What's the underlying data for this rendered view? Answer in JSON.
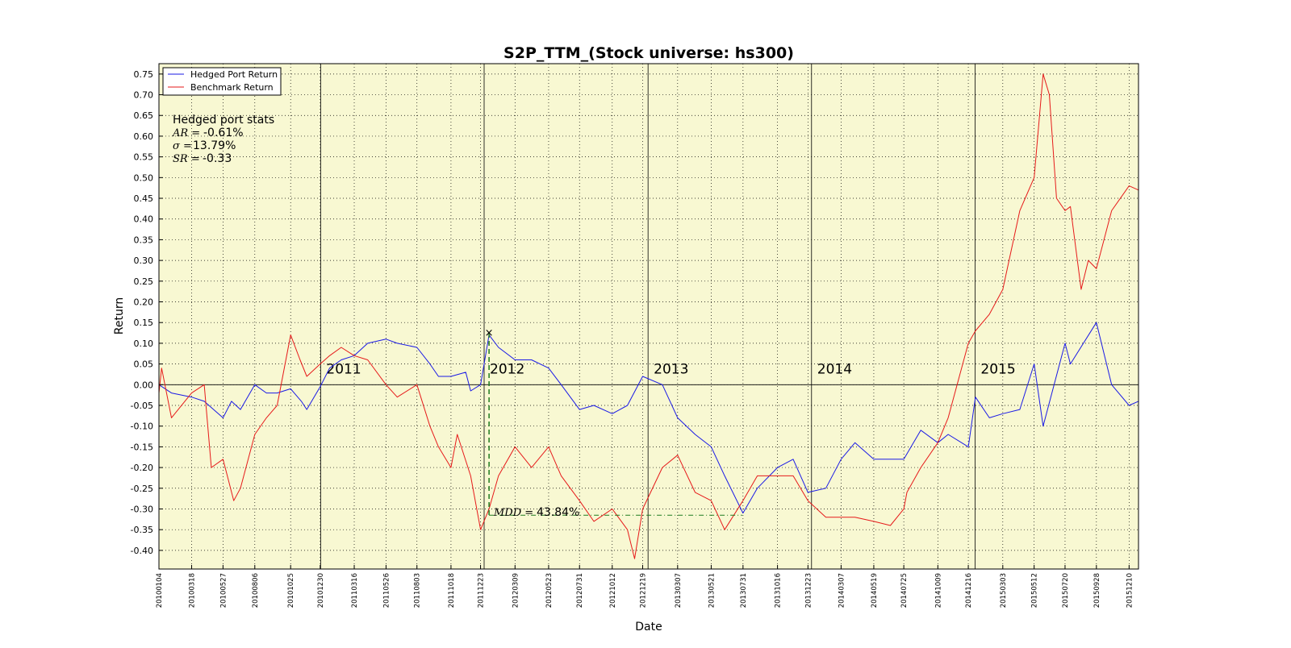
{
  "chart_data": {
    "type": "line",
    "title": "S2P_TTM_(Stock universe: hs300)",
    "xlabel": "Date",
    "ylabel": "Return",
    "ylim": [
      -0.445,
      0.775
    ],
    "grid": true,
    "plot_background": "#f8f8d2",
    "legend": {
      "position": "top-left",
      "entries": [
        "Hedged Port Return",
        "Benchmark Return"
      ]
    },
    "yticks": [
      "0.75",
      "0.70",
      "0.65",
      "0.60",
      "0.55",
      "0.50",
      "0.45",
      "0.40",
      "0.35",
      "0.30",
      "0.25",
      "0.20",
      "0.15",
      "0.10",
      "0.05",
      "0.00",
      "-0.05",
      "-0.10",
      "-0.15",
      "-0.20",
      "-0.25",
      "-0.30",
      "-0.35",
      "-0.40"
    ],
    "xticks": [
      "20100104",
      "20100318",
      "20100527",
      "20100806",
      "20101025",
      "20101230",
      "20110316",
      "20110526",
      "20110803",
      "20111018",
      "20111223",
      "20120309",
      "20120523",
      "20120731",
      "20121012",
      "20121219",
      "20130307",
      "20130521",
      "20130731",
      "20131016",
      "20131223",
      "20140307",
      "20140519",
      "20140725",
      "20141009",
      "20141216",
      "20150303",
      "20150512",
      "20150720",
      "20150928",
      "20151210"
    ],
    "x_range": [
      "20100104",
      "20151231"
    ],
    "year_labels": [
      "2011",
      "2012",
      "2013",
      "2014",
      "2015"
    ],
    "stats": {
      "header": "Hedged port stats",
      "lines": [
        {
          "symbol": "AR =",
          "value": "-0.61%"
        },
        {
          "symbol": "σ =",
          "value": "13.79%"
        },
        {
          "symbol": "SR =",
          "value": "-0.33"
        }
      ]
    },
    "mdd": {
      "symbol": "MDD =",
      "value": "43.84%",
      "peak_date": "20120111",
      "peak_value": 0.125,
      "trough_date": "20130729",
      "trough_value": -0.315
    },
    "series": [
      {
        "name": "Hedged Port Return",
        "color": "#1a1ae6",
        "points": [
          [
            "20100104",
            0.0
          ],
          [
            "20100201",
            -0.02
          ],
          [
            "20100318",
            -0.03
          ],
          [
            "20100415",
            -0.04
          ],
          [
            "20100527",
            -0.08
          ],
          [
            "20100615",
            -0.04
          ],
          [
            "20100705",
            -0.06
          ],
          [
            "20100806",
            0.0
          ],
          [
            "20100901",
            -0.02
          ],
          [
            "20100925",
            -0.02
          ],
          [
            "20101025",
            -0.01
          ],
          [
            "20101118",
            -0.04
          ],
          [
            "20101130",
            -0.06
          ],
          [
            "20101230",
            -0.005
          ],
          [
            "20110120",
            0.04
          ],
          [
            "20110215",
            0.06
          ],
          [
            "20110316",
            0.07
          ],
          [
            "20110415",
            0.1
          ],
          [
            "20110526",
            0.11
          ],
          [
            "20110620",
            0.1
          ],
          [
            "20110803",
            0.09
          ],
          [
            "20110901",
            0.05
          ],
          [
            "20110920",
            0.02
          ],
          [
            "20111018",
            0.02
          ],
          [
            "20111120",
            0.03
          ],
          [
            "20111201",
            -0.015
          ],
          [
            "20111223",
            0.0
          ],
          [
            "20120111",
            0.12
          ],
          [
            "20120201",
            0.09
          ],
          [
            "20120309",
            0.06
          ],
          [
            "20120415",
            0.06
          ],
          [
            "20120523",
            0.04
          ],
          [
            "20120620",
            0.0
          ],
          [
            "20120731",
            -0.06
          ],
          [
            "20120901",
            -0.05
          ],
          [
            "20121012",
            -0.07
          ],
          [
            "20121115",
            -0.05
          ],
          [
            "20121219",
            0.02
          ],
          [
            "20130201",
            0.0
          ],
          [
            "20130307",
            -0.08
          ],
          [
            "20130415",
            -0.12
          ],
          [
            "20130521",
            -0.15
          ],
          [
            "20130620",
            -0.22
          ],
          [
            "20130731",
            -0.31
          ],
          [
            "20130901",
            -0.25
          ],
          [
            "20131016",
            -0.2
          ],
          [
            "20131120",
            -0.18
          ],
          [
            "20131223",
            -0.26
          ],
          [
            "20140201",
            -0.25
          ],
          [
            "20140307",
            -0.18
          ],
          [
            "20140407",
            -0.14
          ],
          [
            "20140519",
            -0.18
          ],
          [
            "20140625",
            -0.18
          ],
          [
            "20140725",
            -0.18
          ],
          [
            "20140901",
            -0.11
          ],
          [
            "20141009",
            -0.14
          ],
          [
            "20141101",
            -0.12
          ],
          [
            "20141216",
            -0.15
          ],
          [
            "20150101",
            -0.03
          ],
          [
            "20150201",
            -0.08
          ],
          [
            "20150303",
            -0.07
          ],
          [
            "20150410",
            -0.06
          ],
          [
            "20150512",
            0.05
          ],
          [
            "20150601",
            -0.1
          ],
          [
            "20150720",
            0.1
          ],
          [
            "20150801",
            0.05
          ],
          [
            "20150928",
            0.15
          ],
          [
            "20151101",
            0.0
          ],
          [
            "20151210",
            -0.05
          ],
          [
            "20151231",
            -0.04
          ]
        ]
      },
      {
        "name": "Benchmark Return",
        "color": "#e61a1a",
        "points": [
          [
            "20100104",
            -0.02
          ],
          [
            "20100110",
            0.04
          ],
          [
            "20100201",
            -0.08
          ],
          [
            "20100318",
            -0.02
          ],
          [
            "20100415",
            0.0
          ],
          [
            "20100501",
            -0.2
          ],
          [
            "20100527",
            -0.18
          ],
          [
            "20100620",
            -0.28
          ],
          [
            "20100705",
            -0.25
          ],
          [
            "20100806",
            -0.12
          ],
          [
            "20100901",
            -0.08
          ],
          [
            "20100925",
            -0.05
          ],
          [
            "20101025",
            0.12
          ],
          [
            "20101115",
            0.06
          ],
          [
            "20101130",
            0.02
          ],
          [
            "20101230",
            0.05
          ],
          [
            "20110120",
            0.07
          ],
          [
            "20110215",
            0.09
          ],
          [
            "20110316",
            0.07
          ],
          [
            "20110415",
            0.06
          ],
          [
            "20110526",
            0.0
          ],
          [
            "20110620",
            -0.03
          ],
          [
            "20110803",
            0.0
          ],
          [
            "20110901",
            -0.1
          ],
          [
            "20110920",
            -0.15
          ],
          [
            "20111018",
            -0.2
          ],
          [
            "20111101",
            -0.12
          ],
          [
            "20111201",
            -0.22
          ],
          [
            "20111223",
            -0.35
          ],
          [
            "20120111",
            -0.3
          ],
          [
            "20120201",
            -0.22
          ],
          [
            "20120309",
            -0.15
          ],
          [
            "20120415",
            -0.2
          ],
          [
            "20120523",
            -0.15
          ],
          [
            "20120620",
            -0.22
          ],
          [
            "20120731",
            -0.28
          ],
          [
            "20120901",
            -0.33
          ],
          [
            "20121012",
            -0.3
          ],
          [
            "20121115",
            -0.35
          ],
          [
            "20121201",
            -0.42
          ],
          [
            "20121219",
            -0.3
          ],
          [
            "20130201",
            -0.2
          ],
          [
            "20130307",
            -0.17
          ],
          [
            "20130415",
            -0.26
          ],
          [
            "20130521",
            -0.28
          ],
          [
            "20130620",
            -0.35
          ],
          [
            "20130731",
            -0.28
          ],
          [
            "20130901",
            -0.22
          ],
          [
            "20131016",
            -0.22
          ],
          [
            "20131120",
            -0.22
          ],
          [
            "20131223",
            -0.28
          ],
          [
            "20140201",
            -0.32
          ],
          [
            "20140307",
            -0.32
          ],
          [
            "20140407",
            -0.32
          ],
          [
            "20140519",
            -0.33
          ],
          [
            "20140625",
            -0.34
          ],
          [
            "20140725",
            -0.3
          ],
          [
            "20140801",
            -0.26
          ],
          [
            "20140901",
            -0.2
          ],
          [
            "20141009",
            -0.14
          ],
          [
            "20141101",
            -0.08
          ],
          [
            "20141216",
            0.1
          ],
          [
            "20150101",
            0.13
          ],
          [
            "20150201",
            0.17
          ],
          [
            "20150303",
            0.23
          ],
          [
            "20150410",
            0.42
          ],
          [
            "20150512",
            0.5
          ],
          [
            "20150601",
            0.75
          ],
          [
            "20150615",
            0.7
          ],
          [
            "20150701",
            0.45
          ],
          [
            "20150720",
            0.42
          ],
          [
            "20150801",
            0.43
          ],
          [
            "20150825",
            0.23
          ],
          [
            "20150910",
            0.3
          ],
          [
            "20150928",
            0.28
          ],
          [
            "20151101",
            0.42
          ],
          [
            "20151210",
            0.48
          ],
          [
            "20151231",
            0.47
          ]
        ]
      }
    ]
  }
}
